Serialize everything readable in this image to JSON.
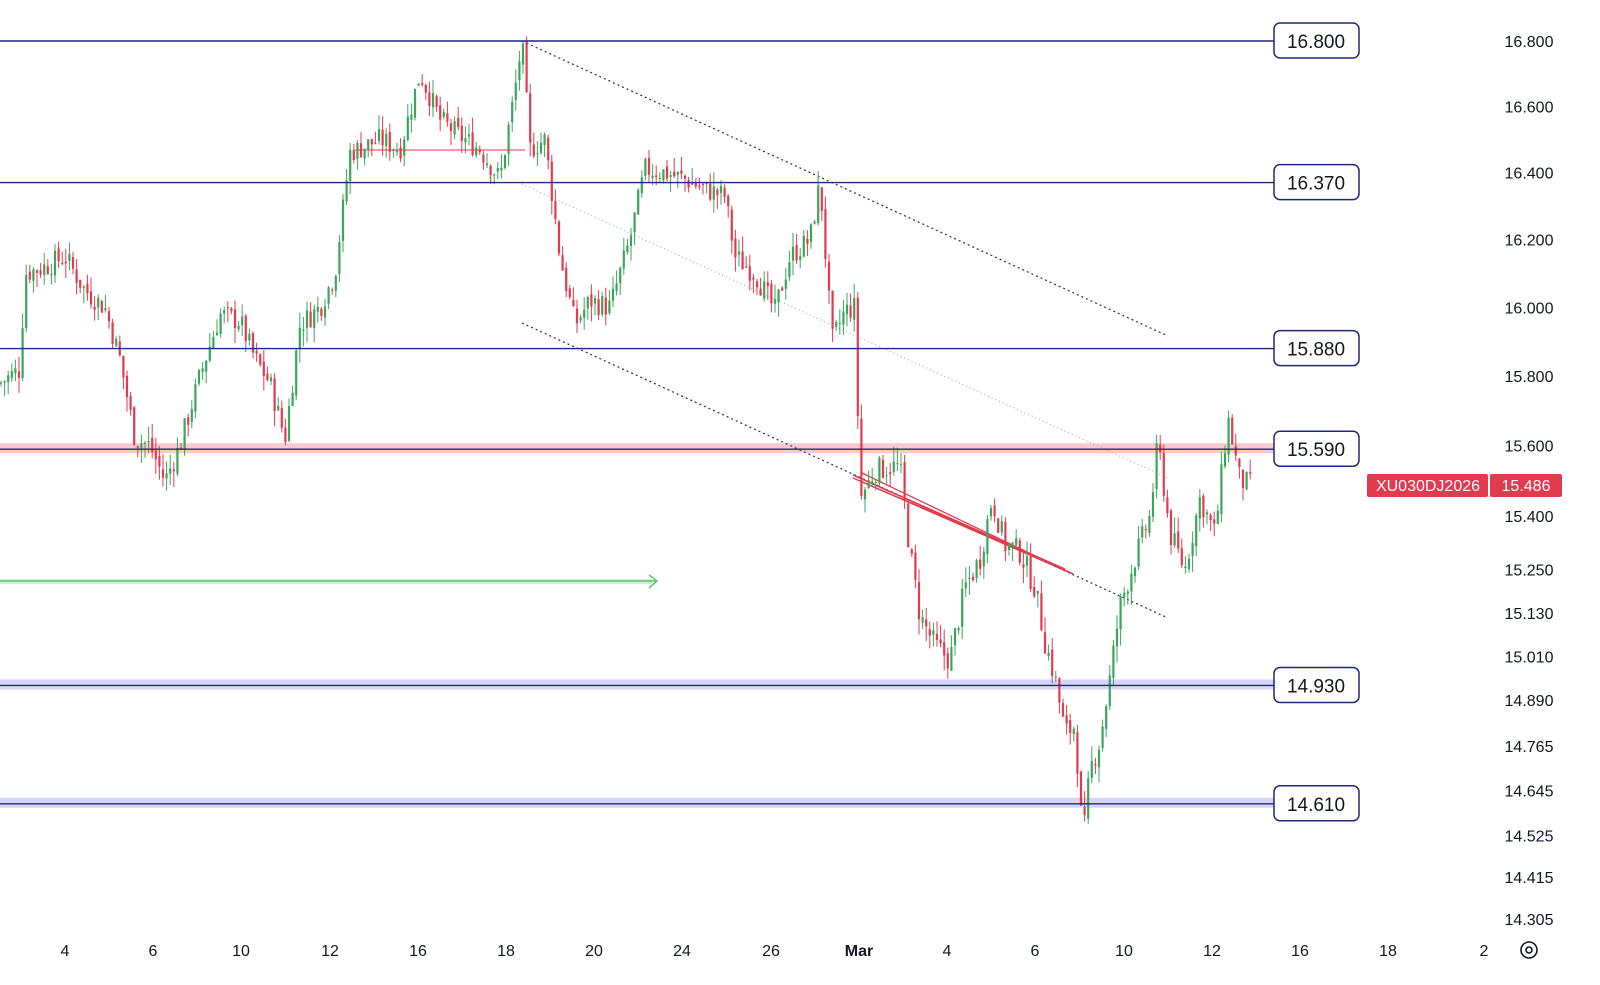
{
  "chart_data": {
    "type": "candlestick",
    "symbol": "XU030DJ2026",
    "last_price": "15.486",
    "y_axis": {
      "ticks": [
        "16.800",
        "16.600",
        "16.400",
        "16.200",
        "16.000",
        "15.800",
        "15.600",
        "15.400",
        "15.250",
        "15.130",
        "15.010",
        "14.890",
        "14.765",
        "14.645",
        "14.525",
        "14.415",
        "14.305"
      ],
      "scale": "log"
    },
    "x_axis": {
      "ticks": [
        "4",
        "6",
        "10",
        "12",
        "16",
        "18",
        "20",
        "24",
        "26",
        "Mar",
        "4",
        "6",
        "10",
        "12",
        "16",
        "18",
        "2"
      ]
    },
    "levels": [
      {
        "label": "16.800",
        "value": 16800,
        "color": "#1f2a7a"
      },
      {
        "label": "16.370",
        "value": 16370,
        "color": "#1f2a7a"
      },
      {
        "label": "15.880",
        "value": 15880,
        "color": "#1f2a7a"
      },
      {
        "label": "15.590",
        "value": 15590,
        "color": "#1f2a7a",
        "zone_color": "#f7b7c0"
      },
      {
        "label": "14.930",
        "value": 14930,
        "color": "#1f2a7a",
        "zone_color": "#c9c9f0"
      },
      {
        "label": "14.610",
        "value": 14610,
        "color": "#1f2a7a",
        "zone_color": "#c9c9f0"
      }
    ],
    "price_path": [
      [
        0,
        15780
      ],
      [
        20,
        15820
      ],
      [
        25,
        16100
      ],
      [
        45,
        16120
      ],
      [
        65,
        16150
      ],
      [
        85,
        16050
      ],
      [
        105,
        16000
      ],
      [
        120,
        15850
      ],
      [
        135,
        15620
      ],
      [
        150,
        15600
      ],
      [
        165,
        15500
      ],
      [
        180,
        15600
      ],
      [
        200,
        15800
      ],
      [
        220,
        15980
      ],
      [
        240,
        15960
      ],
      [
        255,
        15850
      ],
      [
        270,
        15780
      ],
      [
        285,
        15620
      ],
      [
        300,
        15950
      ],
      [
        320,
        16000
      ],
      [
        335,
        16100
      ],
      [
        350,
        16460
      ],
      [
        380,
        16500
      ],
      [
        400,
        16470
      ],
      [
        420,
        16700
      ],
      [
        440,
        16560
      ],
      [
        460,
        16510
      ],
      [
        480,
        16470
      ],
      [
        500,
        16380
      ],
      [
        515,
        16650
      ],
      [
        522,
        16800
      ],
      [
        530,
        16470
      ],
      [
        545,
        16500
      ],
      [
        560,
        16150
      ],
      [
        575,
        15950
      ],
      [
        590,
        16020
      ],
      [
        610,
        16000
      ],
      [
        630,
        16200
      ],
      [
        645,
        16410
      ],
      [
        665,
        16400
      ],
      [
        685,
        16380
      ],
      [
        705,
        16350
      ],
      [
        725,
        16330
      ],
      [
        735,
        16150
      ],
      [
        755,
        16100
      ],
      [
        775,
        15990
      ],
      [
        790,
        16150
      ],
      [
        810,
        16200
      ],
      [
        820,
        16370
      ],
      [
        832,
        15900
      ],
      [
        845,
        15990
      ],
      [
        855,
        16000
      ],
      [
        860,
        15450
      ],
      [
        875,
        15530
      ],
      [
        890,
        15540
      ],
      [
        900,
        15540
      ],
      [
        910,
        15300
      ],
      [
        920,
        15120
      ],
      [
        935,
        15040
      ],
      [
        950,
        15000
      ],
      [
        965,
        15200
      ],
      [
        980,
        15280
      ],
      [
        992,
        15450
      ],
      [
        1005,
        15320
      ],
      [
        1020,
        15300
      ],
      [
        1035,
        15200
      ],
      [
        1045,
        15050
      ],
      [
        1055,
        14950
      ],
      [
        1065,
        14800
      ],
      [
        1075,
        14820
      ],
      [
        1083,
        14500
      ],
      [
        1090,
        14700
      ],
      [
        1100,
        14780
      ],
      [
        1110,
        14950
      ],
      [
        1120,
        15150
      ],
      [
        1135,
        15280
      ],
      [
        1150,
        15400
      ],
      [
        1158,
        15610
      ],
      [
        1170,
        15350
      ],
      [
        1185,
        15250
      ],
      [
        1200,
        15450
      ],
      [
        1215,
        15350
      ],
      [
        1228,
        15680
      ],
      [
        1240,
        15500
      ],
      [
        1252,
        15486
      ]
    ],
    "annotations": [
      {
        "type": "trend_line",
        "style": "dotted",
        "color": "#1f2a7a"
      },
      {
        "type": "trend_line",
        "style": "dotted",
        "color": "#1f2a7a"
      },
      {
        "type": "trend_line",
        "style": "dotted",
        "color": "#9aa0b4"
      },
      {
        "type": "wedge",
        "color": "#e23b4f"
      },
      {
        "type": "arrow",
        "color": "#5fc46e"
      },
      {
        "type": "horizontal_segment",
        "color": "#f29aa6"
      }
    ],
    "colors": {
      "up": "#3ba55c",
      "down": "#e23b4f",
      "level": "#1f2a7a",
      "badge": "#e23b4f"
    }
  },
  "settings_icon": "gear-icon"
}
